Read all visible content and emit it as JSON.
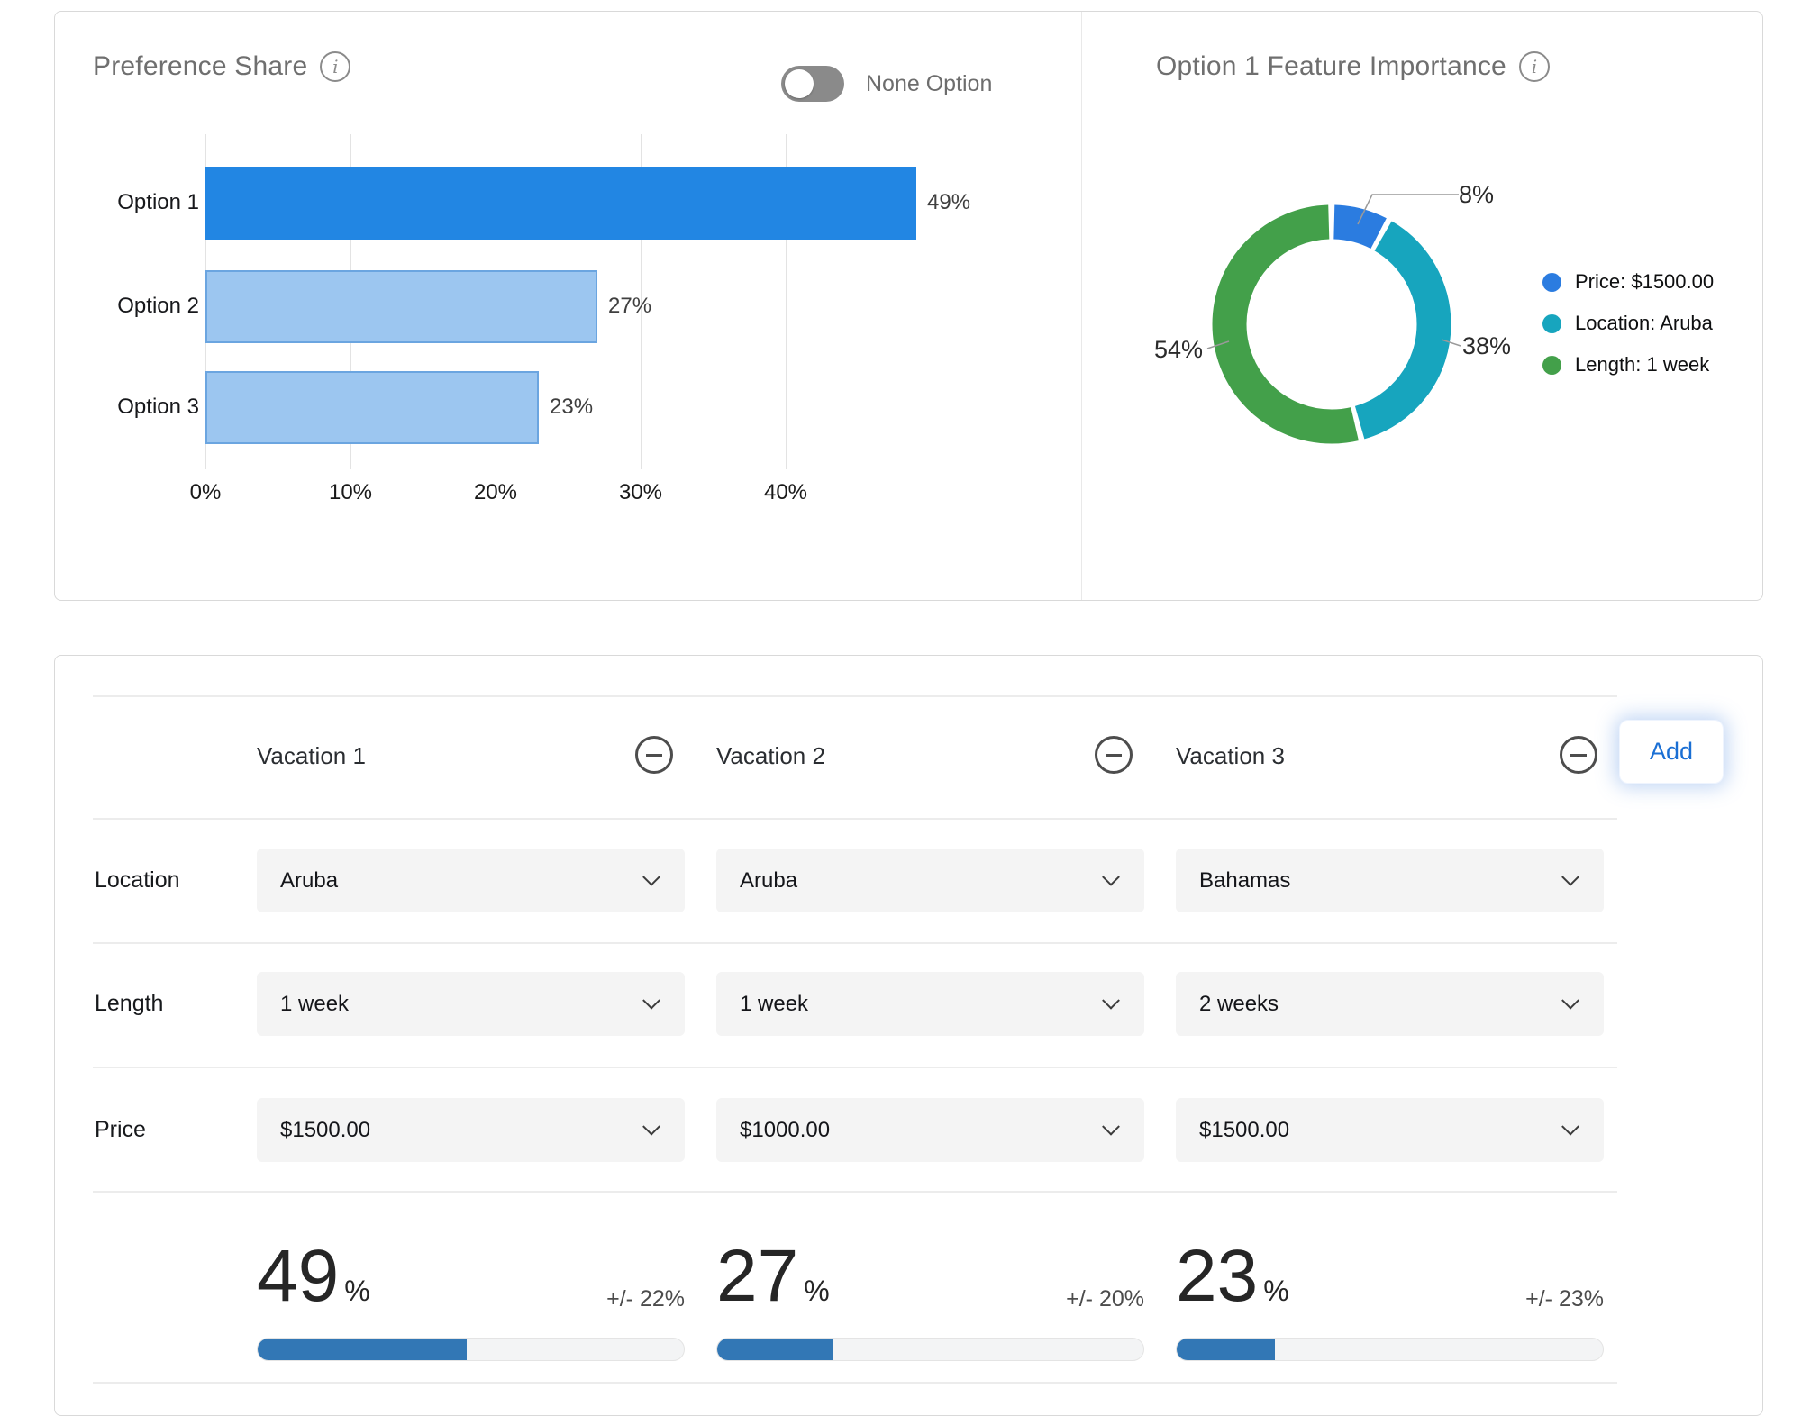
{
  "colors": {
    "bar_primary": "#2286e3",
    "bar_secondary_fill": "#9cc6f0",
    "bar_secondary_border": "#6ba5e0",
    "donut_blue": "#2b7ce0",
    "donut_teal": "#17a5be",
    "donut_green": "#43a04a",
    "progress_fill": "#3277b5",
    "accent_blue": "#1a6fd4"
  },
  "preference_share": {
    "title": "Preference Share",
    "toggle": {
      "label": "None Option",
      "state": "off"
    }
  },
  "feature_importance": {
    "title": "Option 1 Feature Importance",
    "legend": [
      {
        "label": "Price: $1500.00",
        "color": "#2b7ce0"
      },
      {
        "label": "Location: Aruba",
        "color": "#17a5be"
      },
      {
        "label": "Length: 1 week",
        "color": "#43a04a"
      }
    ]
  },
  "chart_data": [
    {
      "type": "bar",
      "orientation": "horizontal",
      "title": "Preference Share",
      "categories": [
        "Option 1",
        "Option 2",
        "Option 3"
      ],
      "values": [
        49,
        27,
        23
      ],
      "value_labels": [
        "49%",
        "27%",
        "23%"
      ],
      "x_ticks": [
        "0%",
        "10%",
        "20%",
        "30%",
        "40%"
      ],
      "xlim": [
        0,
        50
      ],
      "grid": true,
      "highlight_first": true
    },
    {
      "type": "pie",
      "donut": true,
      "title": "Option 1 Feature Importance",
      "categories": [
        "Price: $1500.00",
        "Location: Aruba",
        "Length: 1 week"
      ],
      "values": [
        8,
        38,
        54
      ],
      "slice_labels": [
        "8%",
        "38%",
        "54%"
      ],
      "colors": [
        "#2b7ce0",
        "#17a5be",
        "#43a04a"
      ],
      "legend_position": "right"
    }
  ],
  "simulator": {
    "row_labels": {
      "location": "Location",
      "length": "Length",
      "price": "Price"
    },
    "add_button": "Add",
    "columns": [
      {
        "name": "Vacation 1",
        "location": "Aruba",
        "length": "1 week",
        "price": "$1500.00",
        "share": 49,
        "share_label": "49",
        "share_unit": "%",
        "margin": "+/- 22%"
      },
      {
        "name": "Vacation 2",
        "location": "Aruba",
        "length": "1 week",
        "price": "$1000.00",
        "share": 27,
        "share_label": "27",
        "share_unit": "%",
        "margin": "+/- 20%"
      },
      {
        "name": "Vacation 3",
        "location": "Bahamas",
        "length": "2 weeks",
        "price": "$1500.00",
        "share": 23,
        "share_label": "23",
        "share_unit": "%",
        "margin": "+/- 23%"
      }
    ]
  }
}
